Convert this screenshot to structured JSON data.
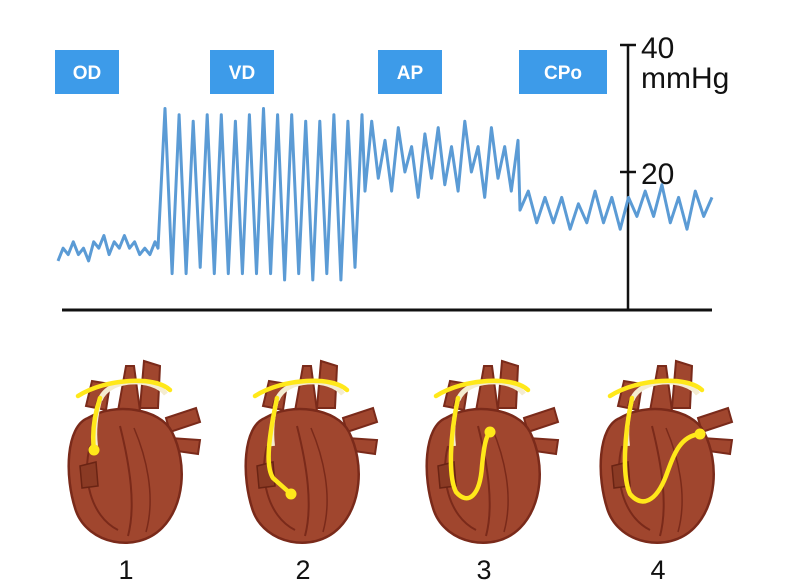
{
  "chambers": [
    {
      "label": "OD",
      "panel": "1"
    },
    {
      "label": "VD",
      "panel": "2"
    },
    {
      "label": "AP",
      "panel": "3"
    },
    {
      "label": "CPo",
      "panel": "4"
    }
  ],
  "axis": {
    "tick_top": "40",
    "tick_unit": "mmHg",
    "tick_mid": "20"
  },
  "colors": {
    "label_box": "#3d9be9",
    "trace": "#5b9bd5",
    "heart": "#a0462e",
    "heart_dark": "#7a2a1a",
    "catheter": "#ffe81a"
  },
  "trace_mmhg": {
    "OD": [
      6,
      8,
      7,
      9,
      7,
      8,
      6,
      9,
      8,
      10,
      7,
      9,
      8,
      10,
      8,
      9,
      7,
      8,
      7,
      9
    ],
    "VD": [
      8,
      30,
      4,
      29,
      4,
      28,
      5,
      29,
      4,
      29,
      4,
      28,
      4,
      29,
      4,
      30,
      4,
      29,
      3,
      29,
      4,
      28,
      3,
      28,
      4,
      29,
      3,
      28,
      5,
      29
    ],
    "AP": [
      17,
      28,
      19,
      25,
      17,
      27,
      20,
      24,
      16,
      26,
      19,
      27,
      18,
      24,
      17,
      28,
      20,
      24,
      16,
      27,
      19,
      24,
      17,
      25
    ],
    "CPo": [
      14,
      17,
      12,
      16,
      12,
      16,
      11,
      15,
      12,
      17,
      12,
      16,
      11,
      16,
      13,
      17,
      13,
      18,
      12,
      16,
      11,
      17,
      13,
      16
    ]
  }
}
